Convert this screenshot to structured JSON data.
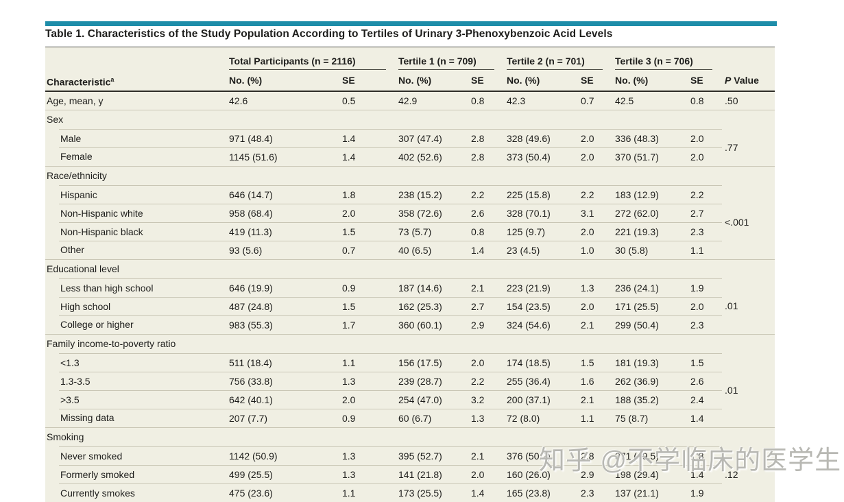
{
  "colors": {
    "accent_teal": "#1e8da9",
    "table_background": "#f0efe3",
    "light_rule": "#c9c6b5",
    "dark_rule": "#2e2d28",
    "text": "#1d1d1b"
  },
  "page": {
    "title": "Table 1. Characteristics of the Study Population According to Tertiles of Urinary 3-Phenoxybenzoic Acid Levels"
  },
  "watermark": {
    "text": "知乎 @不学临床的医学生"
  },
  "table": {
    "row_header": "Characteristic",
    "row_header_superscript": "a",
    "groups": [
      {
        "label": "Total Participants (n = 2116)"
      },
      {
        "label": "Tertile 1 (n = 709)"
      },
      {
        "label": "Tertile 2 (n = 701)"
      },
      {
        "label": "Tertile 3 (n = 706)"
      }
    ],
    "subheaders": {
      "no_pct": "No. (%)",
      "se": "SE"
    },
    "p_value_header": {
      "p": "P",
      "rest": "Value"
    },
    "rows": [
      {
        "type": "data",
        "first": true,
        "indent": false,
        "label": "Age, mean, y",
        "values": [
          "42.6",
          "0.5",
          "42.9",
          "0.8",
          "42.3",
          "0.7",
          "42.5",
          "0.8"
        ],
        "p": ".50",
        "p_rowspan": 1
      },
      {
        "type": "section",
        "label": "Sex"
      },
      {
        "type": "data",
        "indent": true,
        "label": "Male",
        "values": [
          "971 (48.4)",
          "1.4",
          "307 (47.4)",
          "2.8",
          "328 (49.6)",
          "2.0",
          "336 (48.3)",
          "2.0"
        ],
        "p": ".77",
        "p_rowspan": 2
      },
      {
        "type": "data",
        "indent": true,
        "label": "Female",
        "values": [
          "1145 (51.6)",
          "1.4",
          "402 (52.6)",
          "2.8",
          "373 (50.4)",
          "2.0",
          "370 (51.7)",
          "2.0"
        ]
      },
      {
        "type": "section",
        "label": "Race/ethnicity"
      },
      {
        "type": "data",
        "indent": true,
        "label": "Hispanic",
        "values": [
          "646 (14.7)",
          "1.8",
          "238 (15.2)",
          "2.2",
          "225 (15.8)",
          "2.2",
          "183 (12.9)",
          "2.2"
        ],
        "p": "<.001",
        "p_rowspan": 4
      },
      {
        "type": "data",
        "indent": true,
        "label": "Non-Hispanic white",
        "values": [
          "958 (68.4)",
          "2.0",
          "358 (72.6)",
          "2.6",
          "328 (70.1)",
          "3.1",
          "272 (62.0)",
          "2.7"
        ]
      },
      {
        "type": "data",
        "indent": true,
        "label": "Non-Hispanic black",
        "values": [
          "419 (11.3)",
          "1.5",
          "73 (5.7)",
          "0.8",
          "125 (9.7)",
          "2.0",
          "221 (19.3)",
          "2.3"
        ]
      },
      {
        "type": "data",
        "indent": true,
        "label": "Other",
        "values": [
          "93 (5.6)",
          "0.7",
          "40 (6.5)",
          "1.4",
          "23 (4.5)",
          "1.0",
          "30 (5.8)",
          "1.1"
        ]
      },
      {
        "type": "section",
        "label": "Educational level"
      },
      {
        "type": "data",
        "indent": true,
        "label": "Less than high school",
        "values": [
          "646 (19.9)",
          "0.9",
          "187 (14.6)",
          "2.1",
          "223 (21.9)",
          "1.3",
          "236 (24.1)",
          "1.9"
        ],
        "p": ".01",
        "p_rowspan": 3
      },
      {
        "type": "data",
        "indent": true,
        "label": "High school",
        "values": [
          "487 (24.8)",
          "1.5",
          "162 (25.3)",
          "2.7",
          "154 (23.5)",
          "2.0",
          "171 (25.5)",
          "2.0"
        ]
      },
      {
        "type": "data",
        "indent": true,
        "label": "College or higher",
        "values": [
          "983 (55.3)",
          "1.7",
          "360 (60.1)",
          "2.9",
          "324 (54.6)",
          "2.1",
          "299 (50.4)",
          "2.3"
        ]
      },
      {
        "type": "section",
        "label": "Family income-to-poverty ratio"
      },
      {
        "type": "data",
        "indent": true,
        "label": "<1.3",
        "values": [
          "511 (18.4)",
          "1.1",
          "156 (17.5)",
          "2.0",
          "174 (18.5)",
          "1.5",
          "181 (19.3)",
          "1.5"
        ],
        "p": ".01",
        "p_rowspan": 4
      },
      {
        "type": "data",
        "indent": true,
        "label": "1.3-3.5",
        "values": [
          "756 (33.8)",
          "1.3",
          "239 (28.7)",
          "2.2",
          "255 (36.4)",
          "1.6",
          "262 (36.9)",
          "2.6"
        ]
      },
      {
        "type": "data",
        "indent": true,
        "label": ">3.5",
        "values": [
          "642 (40.1)",
          "2.0",
          "254 (47.0)",
          "3.2",
          "200 (37.1)",
          "2.1",
          "188 (35.2)",
          "2.4"
        ]
      },
      {
        "type": "data",
        "indent": true,
        "label": "Missing data",
        "values": [
          "207 (7.7)",
          "0.9",
          "60 (6.7)",
          "1.3",
          "72 (8.0)",
          "1.1",
          "75 (8.7)",
          "1.4"
        ]
      },
      {
        "type": "section",
        "label": "Smoking"
      },
      {
        "type": "data",
        "indent": true,
        "label": "Never smoked",
        "values": [
          "1142 (50.9)",
          "1.3",
          "395 (52.7)",
          "2.1",
          "376 (50.2)",
          "2.8",
          "371 (49.5)",
          "1.8"
        ],
        "p": ".12",
        "p_rowspan": 3
      },
      {
        "type": "data",
        "indent": true,
        "label": "Formerly smoked",
        "values": [
          "499 (25.5)",
          "1.3",
          "141 (21.8)",
          "2.0",
          "160 (26.0)",
          "2.9",
          "198 (29.4)",
          "1.4"
        ]
      },
      {
        "type": "data",
        "indent": true,
        "label": "Currently smokes",
        "values": [
          "475 (23.6)",
          "1.1",
          "173 (25.5)",
          "1.4",
          "165 (23.8)",
          "2.3",
          "137 (21.1)",
          "1.9"
        ]
      }
    ]
  }
}
